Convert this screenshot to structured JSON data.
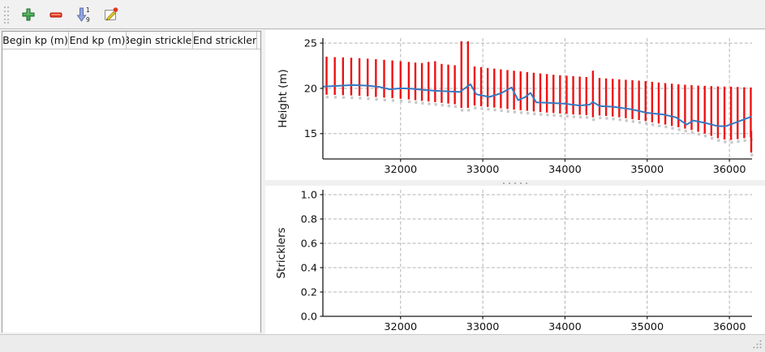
{
  "window": {
    "background": "#f0f0f0",
    "panel_background": "#ffffff"
  },
  "toolbar": {
    "icons": [
      {
        "name": "add-icon",
        "color": "#43a550"
      },
      {
        "name": "remove-icon",
        "color": "#e8432e"
      },
      {
        "name": "sort-ascending-icon",
        "color": "#95a6dd",
        "numbers": [
          "1",
          "9"
        ]
      },
      {
        "name": "edit-icon",
        "color": "#e3c620",
        "badge_color": "#e23620"
      }
    ]
  },
  "table": {
    "columns": [
      "Begin kp (m)",
      "End kp (m)",
      "Begin strickler",
      "End strickler"
    ],
    "rows": []
  },
  "chart_data": [
    {
      "type": "range-bar+line",
      "title": "",
      "xlabel": "",
      "ylabel": "Height (m)",
      "xlim": [
        31055,
        36275
      ],
      "ylim": [
        12.2,
        25.55
      ],
      "xticks": [
        32000,
        33000,
        34000,
        35000,
        36000
      ],
      "xtick_labels": [
        "32000",
        "33000",
        "34000",
        "35000",
        "36000"
      ],
      "yticks": [
        15,
        20,
        25
      ],
      "ytick_labels": [
        "15",
        "20",
        "25"
      ],
      "grid": true,
      "grid_color": "#b4b4b4",
      "bar_color": "#ee1111",
      "line_color": "#3579c2",
      "shadow_color": "#c9c9c9",
      "bars": [
        [
          31100,
          23.5,
          19.3
        ],
        [
          31200,
          23.45,
          19.28
        ],
        [
          31300,
          23.42,
          19.25
        ],
        [
          31400,
          23.38,
          19.22
        ],
        [
          31500,
          23.33,
          19.18
        ],
        [
          31600,
          23.28,
          19.12
        ],
        [
          31700,
          23.22,
          19.05
        ],
        [
          31800,
          23.15,
          18.98
        ],
        [
          31900,
          23.08,
          18.92
        ],
        [
          32000,
          23.0,
          18.85
        ],
        [
          32100,
          22.92,
          18.78
        ],
        [
          32180,
          22.85,
          18.7
        ],
        [
          32260,
          22.8,
          18.62
        ],
        [
          32340,
          22.92,
          18.55
        ],
        [
          32420,
          23.0,
          18.48
        ],
        [
          32500,
          22.7,
          18.4
        ],
        [
          32580,
          22.62,
          18.32
        ],
        [
          32660,
          22.55,
          18.25
        ],
        [
          32740,
          25.2,
          17.85
        ],
        [
          32820,
          25.2,
          17.85
        ],
        [
          32900,
          22.42,
          18.1
        ],
        [
          32980,
          22.35,
          18.02
        ],
        [
          33060,
          22.25,
          17.95
        ],
        [
          33140,
          22.18,
          17.88
        ],
        [
          33220,
          22.1,
          17.8
        ],
        [
          33300,
          22.02,
          17.72
        ],
        [
          33380,
          21.95,
          17.65
        ],
        [
          33460,
          21.88,
          17.58
        ],
        [
          33540,
          21.8,
          17.52
        ],
        [
          33620,
          21.72,
          17.45
        ],
        [
          33700,
          21.65,
          17.38
        ],
        [
          33780,
          21.58,
          17.32
        ],
        [
          33860,
          21.5,
          17.28
        ],
        [
          33940,
          21.45,
          17.22
        ],
        [
          34020,
          21.4,
          17.18
        ],
        [
          34100,
          21.35,
          17.12
        ],
        [
          34180,
          21.3,
          17.08
        ],
        [
          34260,
          21.25,
          17.05
        ],
        [
          34340,
          21.95,
          16.8
        ],
        [
          34420,
          21.15,
          17.0
        ],
        [
          34500,
          21.1,
          16.95
        ],
        [
          34580,
          21.05,
          16.88
        ],
        [
          34660,
          21.0,
          16.8
        ],
        [
          34740,
          20.95,
          16.7
        ],
        [
          34820,
          20.9,
          16.6
        ],
        [
          34900,
          20.85,
          16.5
        ],
        [
          34980,
          20.8,
          16.38
        ],
        [
          35060,
          20.72,
          16.25
        ],
        [
          35140,
          20.65,
          16.12
        ],
        [
          35220,
          20.58,
          16.0
        ],
        [
          35300,
          20.52,
          15.85
        ],
        [
          35380,
          20.45,
          15.7
        ],
        [
          35460,
          20.4,
          15.55
        ],
        [
          35540,
          20.35,
          15.4
        ],
        [
          35620,
          20.3,
          15.2
        ],
        [
          35700,
          20.28,
          15.0
        ],
        [
          35780,
          20.25,
          14.75
        ],
        [
          35860,
          20.22,
          14.5
        ],
        [
          35940,
          20.2,
          14.35
        ],
        [
          36020,
          20.18,
          14.3
        ],
        [
          36100,
          20.15,
          14.4
        ],
        [
          36180,
          20.12,
          14.5
        ],
        [
          36260,
          20.1,
          14.6
        ],
        [
          36270,
          15.3,
          12.9
        ]
      ],
      "line": [
        [
          31060,
          20.2
        ],
        [
          31250,
          20.28
        ],
        [
          31420,
          20.36
        ],
        [
          31600,
          20.3
        ],
        [
          31750,
          20.15
        ],
        [
          31870,
          19.9
        ],
        [
          32000,
          20.0
        ],
        [
          32120,
          19.98
        ],
        [
          32250,
          19.85
        ],
        [
          32400,
          19.75
        ],
        [
          32550,
          19.68
        ],
        [
          32720,
          19.6
        ],
        [
          32850,
          20.45
        ],
        [
          32920,
          19.35
        ],
        [
          33080,
          19.05
        ],
        [
          33220,
          19.45
        ],
        [
          33350,
          20.1
        ],
        [
          33430,
          18.7
        ],
        [
          33510,
          19.0
        ],
        [
          33580,
          19.5
        ],
        [
          33650,
          18.45
        ],
        [
          33800,
          18.4
        ],
        [
          34000,
          18.3
        ],
        [
          34180,
          18.1
        ],
        [
          34300,
          18.2
        ],
        [
          34340,
          18.5
        ],
        [
          34420,
          18.05
        ],
        [
          34600,
          17.95
        ],
        [
          34800,
          17.7
        ],
        [
          35000,
          17.3
        ],
        [
          35200,
          17.1
        ],
        [
          35350,
          16.8
        ],
        [
          35480,
          16.0
        ],
        [
          35560,
          16.45
        ],
        [
          35700,
          16.2
        ],
        [
          35850,
          15.85
        ],
        [
          35950,
          15.8
        ],
        [
          36100,
          16.3
        ],
        [
          36260,
          16.85
        ]
      ]
    },
    {
      "type": "line",
      "title": "",
      "xlabel": "",
      "ylabel": "Stricklers",
      "xlim": [
        31055,
        36275
      ],
      "ylim": [
        0,
        1.04
      ],
      "xticks": [
        32000,
        33000,
        34000,
        35000,
        36000
      ],
      "xtick_labels": [
        "32000",
        "33000",
        "34000",
        "35000",
        "36000"
      ],
      "yticks": [
        0,
        0.2,
        0.4,
        0.6,
        0.8,
        1.0
      ],
      "ytick_labels": [
        "0.0",
        "0.2",
        "0.4",
        "0.6",
        "0.8",
        "1.0"
      ],
      "grid": true,
      "grid_color": "#b4b4b4",
      "series": []
    }
  ]
}
